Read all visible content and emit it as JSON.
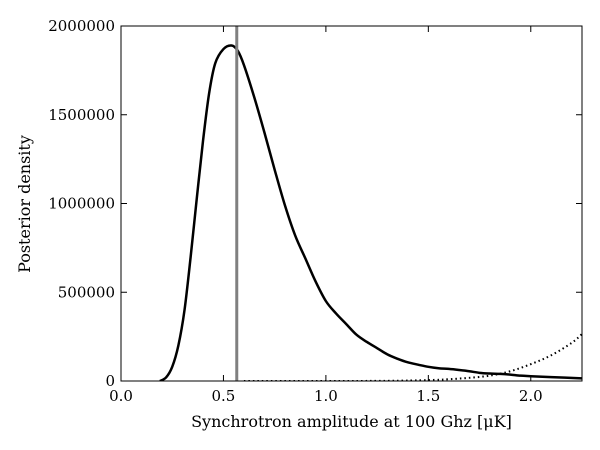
{
  "chart_data": {
    "type": "line",
    "title": "",
    "xlabel": "Synchrotron amplitude at 100 Ghz [μK]",
    "ylabel": "Posterior density",
    "xlim": [
      0.0,
      2.25
    ],
    "ylim": [
      0,
      2000000
    ],
    "xticks": [
      0.0,
      0.5,
      1.0,
      1.5,
      2.0
    ],
    "xtick_labels": [
      "0.0",
      "0.5",
      "1.0",
      "1.5",
      "2.0"
    ],
    "yticks": [
      0,
      500000,
      1000000,
      1500000,
      2000000
    ],
    "ytick_labels": [
      "0",
      "500000",
      "1000000",
      "1500000",
      "2000000"
    ],
    "grid": false,
    "legend": "none",
    "series": [
      {
        "style": "solid",
        "color": "#000000",
        "points": [
          [
            0.19,
            0
          ],
          [
            0.22,
            20000
          ],
          [
            0.25,
            80000
          ],
          [
            0.28,
            200000
          ],
          [
            0.31,
            400000
          ],
          [
            0.34,
            700000
          ],
          [
            0.37,
            1030000
          ],
          [
            0.4,
            1350000
          ],
          [
            0.43,
            1620000
          ],
          [
            0.46,
            1790000
          ],
          [
            0.5,
            1870000
          ],
          [
            0.54,
            1890000
          ],
          [
            0.57,
            1860000
          ],
          [
            0.6,
            1780000
          ],
          [
            0.65,
            1600000
          ],
          [
            0.7,
            1400000
          ],
          [
            0.75,
            1190000
          ],
          [
            0.8,
            990000
          ],
          [
            0.85,
            820000
          ],
          [
            0.9,
            690000
          ],
          [
            0.95,
            560000
          ],
          [
            1.0,
            450000
          ],
          [
            1.05,
            380000
          ],
          [
            1.1,
            320000
          ],
          [
            1.15,
            260000
          ],
          [
            1.2,
            220000
          ],
          [
            1.25,
            185000
          ],
          [
            1.3,
            150000
          ],
          [
            1.35,
            125000
          ],
          [
            1.4,
            105000
          ],
          [
            1.45,
            92000
          ],
          [
            1.5,
            80000
          ],
          [
            1.55,
            72000
          ],
          [
            1.6,
            68000
          ],
          [
            1.65,
            62000
          ],
          [
            1.7,
            55000
          ],
          [
            1.75,
            46000
          ],
          [
            1.8,
            42000
          ],
          [
            1.85,
            40000
          ],
          [
            1.9,
            36000
          ],
          [
            1.95,
            30000
          ],
          [
            2.0,
            27000
          ],
          [
            2.1,
            22000
          ],
          [
            2.25,
            15000
          ]
        ]
      },
      {
        "style": "dotted",
        "color": "#000000",
        "points": [
          [
            0.6,
            0
          ],
          [
            1.0,
            0
          ],
          [
            1.3,
            1000
          ],
          [
            1.5,
            5000
          ],
          [
            1.6,
            10000
          ],
          [
            1.7,
            18000
          ],
          [
            1.8,
            30000
          ],
          [
            1.9,
            55000
          ],
          [
            2.0,
            95000
          ],
          [
            2.1,
            145000
          ],
          [
            2.2,
            215000
          ],
          [
            2.25,
            265000
          ]
        ]
      }
    ],
    "vlines": [
      {
        "x": 0.565,
        "color": "#808080"
      }
    ]
  }
}
